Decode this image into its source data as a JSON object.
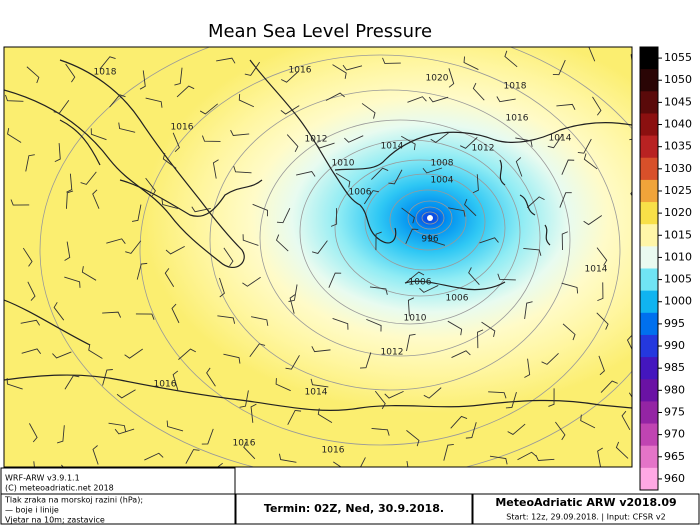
{
  "title": "Mean Sea Level Pressure",
  "colorbar": {
    "labels": [
      1055,
      1050,
      1045,
      1040,
      1035,
      1030,
      1025,
      1020,
      1015,
      1010,
      1005,
      1000,
      995,
      990,
      985,
      980,
      975,
      970,
      965,
      960
    ],
    "colors": [
      "#000000",
      "#2a0505",
      "#5a0a0a",
      "#8b1010",
      "#b82222",
      "#d8502a",
      "#f0a43a",
      "#f8e048",
      "#fff6a8",
      "#eafaf0",
      "#70e4f4",
      "#10b4f0",
      "#0070ee",
      "#2438de",
      "#4416be",
      "#6a12a4",
      "#9424a4",
      "#c044b2",
      "#e474c8",
      "#ffa8e4"
    ]
  },
  "contour_labels": [
    "1018",
    "1016",
    "1020",
    "1018",
    "1016",
    "1016",
    "1014",
    "1012",
    "1014",
    "1012",
    "1010",
    "1008",
    "1004",
    "1006",
    "996",
    "1014",
    "1006",
    "1006",
    "1010",
    "1012",
    "1016",
    "1014",
    "1016",
    "1016"
  ],
  "footer": {
    "model": "WRF-ARW v3.9.1.1",
    "copyright": "(C) meteoadriatic.net 2018",
    "legend": [
      "Tlak zraka na morskoj razini (hPa);",
      "— boje i linije",
      "Vjetar na 10m; zastavice"
    ],
    "termin": "Termin: 02Z, Ned, 30.9.2018.",
    "product": "MeteoAdriatic ARW v2018.09",
    "start": "Start: 12z, 29.09.2018. | Input: CFSR v2"
  }
}
